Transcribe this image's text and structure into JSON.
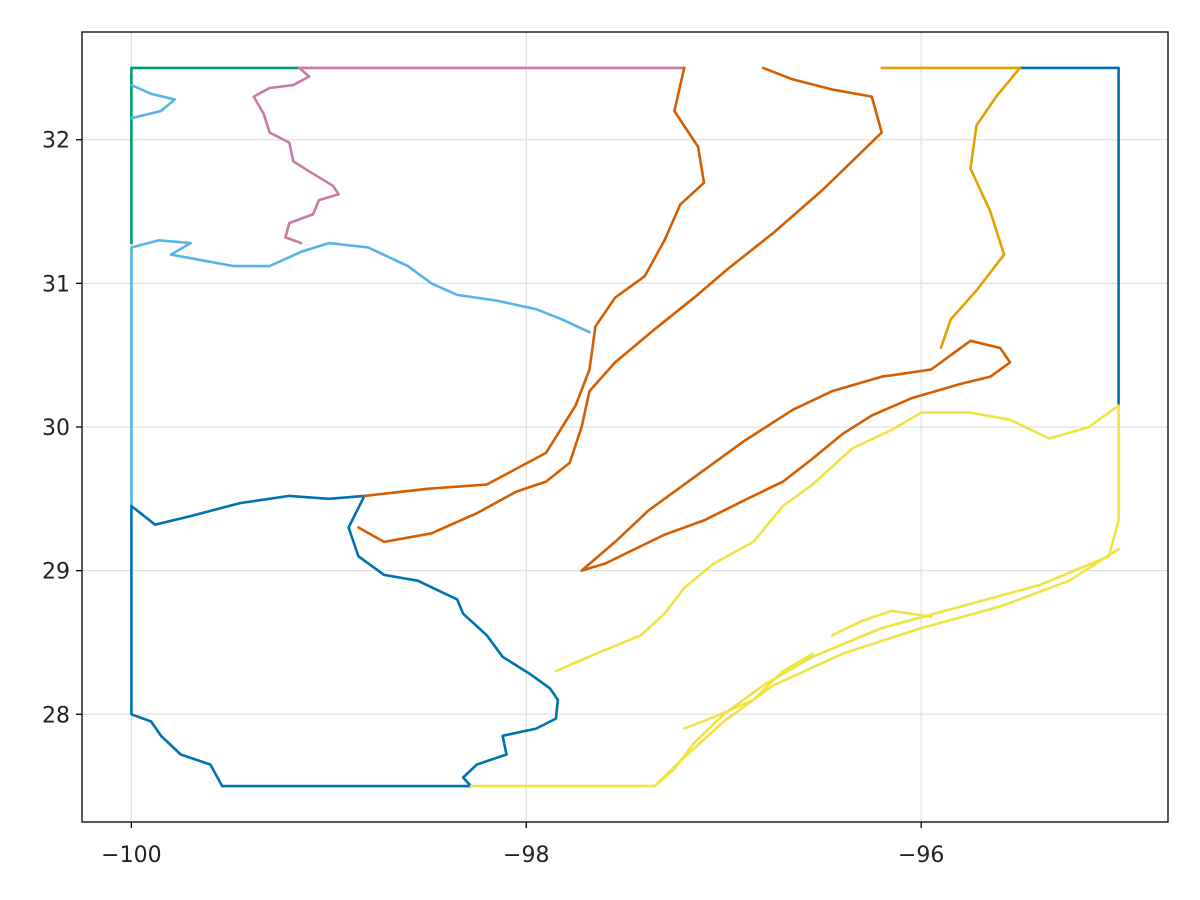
{
  "chart_data": {
    "type": "map",
    "xlim": [
      -100.25,
      -94.75
    ],
    "ylim": [
      27.25,
      32.75
    ],
    "grid": true,
    "x_ticks": [
      {
        "value": -100,
        "label": "−100"
      },
      {
        "value": -98,
        "label": "−98"
      },
      {
        "value": -96,
        "label": "−96"
      }
    ],
    "y_ticks": [
      {
        "value": 28,
        "label": "28"
      },
      {
        "value": 29,
        "label": "29"
      },
      {
        "value": 30,
        "label": "30"
      },
      {
        "value": 31,
        "label": "31"
      },
      {
        "value": 32,
        "label": "32"
      }
    ],
    "regions": [
      {
        "color": "#009e73",
        "paths": [
          [
            [
              -100.0,
              31.28
            ],
            [
              -100.0,
              32.5
            ],
            [
              -99.15,
              32.5
            ]
          ]
        ]
      },
      {
        "color": "#cc79a7",
        "paths": [
          [
            [
              -99.15,
              32.5
            ],
            [
              -98.8,
              32.5
            ],
            [
              -97.2,
              32.5
            ]
          ],
          [
            [
              -99.15,
              32.5
            ],
            [
              -99.1,
              32.44
            ],
            [
              -99.18,
              32.38
            ],
            [
              -99.3,
              32.36
            ],
            [
              -99.38,
              32.3
            ],
            [
              -99.33,
              32.18
            ],
            [
              -99.3,
              32.05
            ],
            [
              -99.2,
              31.98
            ],
            [
              -99.18,
              31.85
            ],
            [
              -99.1,
              31.78
            ],
            [
              -98.98,
              31.68
            ],
            [
              -98.95,
              31.62
            ],
            [
              -99.05,
              31.58
            ],
            [
              -99.08,
              31.48
            ],
            [
              -99.2,
              31.42
            ],
            [
              -99.22,
              31.32
            ],
            [
              -99.14,
              31.28
            ]
          ]
        ]
      },
      {
        "color": "#56b4e9",
        "paths": [
          [
            [
              -100.0,
              32.38
            ],
            [
              -99.9,
              32.32
            ],
            [
              -99.78,
              32.28
            ],
            [
              -99.85,
              32.2
            ],
            [
              -100.0,
              32.15
            ]
          ],
          [
            [
              -100.0,
              29.45
            ],
            [
              -100.0,
              31.25
            ],
            [
              -99.86,
              31.3
            ],
            [
              -99.7,
              31.28
            ],
            [
              -99.8,
              31.2
            ],
            [
              -99.6,
              31.15
            ],
            [
              -99.48,
              31.12
            ],
            [
              -99.3,
              31.12
            ],
            [
              -99.14,
              31.22
            ],
            [
              -99.0,
              31.28
            ],
            [
              -98.8,
              31.25
            ],
            [
              -98.6,
              31.12
            ],
            [
              -98.48,
              31.0
            ],
            [
              -98.35,
              30.92
            ],
            [
              -98.15,
              30.88
            ],
            [
              -97.95,
              30.82
            ],
            [
              -97.82,
              30.75
            ],
            [
              -97.68,
              30.66
            ]
          ]
        ]
      },
      {
        "color": "#0072b2",
        "paths": [
          [
            [
              -95.5,
              32.5
            ],
            [
              -95.0,
              32.5
            ],
            [
              -95.0,
              30.15
            ]
          ],
          [
            [
              -98.82,
              29.52
            ],
            [
              -99.0,
              29.5
            ],
            [
              -99.2,
              29.52
            ],
            [
              -99.45,
              29.47
            ],
            [
              -99.7,
              29.38
            ],
            [
              -99.88,
              29.32
            ],
            [
              -100.0,
              29.45
            ],
            [
              -100.0,
              28.0
            ],
            [
              -99.9,
              27.95
            ],
            [
              -99.85,
              27.85
            ],
            [
              -99.75,
              27.72
            ],
            [
              -99.6,
              27.65
            ],
            [
              -99.54,
              27.5
            ],
            [
              -99.0,
              27.5
            ],
            [
              -98.28,
              27.5
            ],
            [
              -98.32,
              27.56
            ],
            [
              -98.25,
              27.65
            ],
            [
              -98.1,
              27.72
            ],
            [
              -98.12,
              27.85
            ],
            [
              -97.95,
              27.9
            ],
            [
              -97.85,
              27.97
            ],
            [
              -97.84,
              28.1
            ],
            [
              -97.88,
              28.18
            ],
            [
              -97.98,
              28.28
            ],
            [
              -98.12,
              28.4
            ],
            [
              -98.2,
              28.55
            ],
            [
              -98.32,
              28.7
            ],
            [
              -98.35,
              28.8
            ],
            [
              -98.55,
              28.93
            ],
            [
              -98.72,
              28.97
            ],
            [
              -98.85,
              29.1
            ],
            [
              -98.9,
              29.3
            ],
            [
              -98.82,
              29.52
            ]
          ]
        ]
      },
      {
        "color": "#d55e00",
        "paths": [
          [
            [
              -98.82,
              29.52
            ],
            [
              -98.5,
              29.57
            ],
            [
              -98.2,
              29.6
            ],
            [
              -97.9,
              29.82
            ],
            [
              -97.75,
              30.15
            ],
            [
              -97.68,
              30.4
            ],
            [
              -97.65,
              30.7
            ],
            [
              -97.55,
              30.9
            ],
            [
              -97.4,
              31.05
            ],
            [
              -97.3,
              31.3
            ],
            [
              -97.22,
              31.55
            ],
            [
              -97.1,
              31.7
            ],
            [
              -97.13,
              31.95
            ],
            [
              -97.25,
              32.2
            ],
            [
              -97.2,
              32.5
            ]
          ],
          [
            [
              -96.8,
              32.5
            ],
            [
              -96.65,
              32.42
            ],
            [
              -96.45,
              32.35
            ],
            [
              -96.25,
              32.3
            ],
            [
              -96.2,
              32.05
            ],
            [
              -96.35,
              31.85
            ],
            [
              -96.5,
              31.65
            ],
            [
              -96.75,
              31.35
            ],
            [
              -96.98,
              31.1
            ],
            [
              -97.15,
              30.9
            ],
            [
              -97.35,
              30.68
            ],
            [
              -97.55,
              30.45
            ],
            [
              -97.68,
              30.25
            ],
            [
              -97.72,
              30.0
            ],
            [
              -97.78,
              29.75
            ],
            [
              -97.9,
              29.62
            ],
            [
              -98.05,
              29.55
            ],
            [
              -98.25,
              29.4
            ],
            [
              -98.48,
              29.26
            ],
            [
              -98.72,
              29.2
            ],
            [
              -98.85,
              29.3
            ]
          ],
          [
            [
              -97.72,
              29.0
            ],
            [
              -97.6,
              29.05
            ],
            [
              -97.45,
              29.15
            ],
            [
              -97.3,
              29.25
            ],
            [
              -97.1,
              29.35
            ],
            [
              -96.88,
              29.5
            ],
            [
              -96.7,
              29.62
            ],
            [
              -96.55,
              29.78
            ],
            [
              -96.4,
              29.95
            ],
            [
              -96.25,
              30.08
            ],
            [
              -96.05,
              30.2
            ],
            [
              -95.8,
              30.3
            ],
            [
              -95.65,
              30.35
            ],
            [
              -95.55,
              30.45
            ],
            [
              -95.6,
              30.55
            ],
            [
              -95.75,
              30.6
            ],
            [
              -95.85,
              30.5
            ],
            [
              -95.95,
              30.4
            ],
            [
              -96.2,
              30.35
            ],
            [
              -96.45,
              30.25
            ],
            [
              -96.65,
              30.12
            ],
            [
              -96.9,
              29.9
            ],
            [
              -97.15,
              29.65
            ],
            [
              -97.38,
              29.42
            ],
            [
              -97.55,
              29.2
            ],
            [
              -97.72,
              29.0
            ]
          ]
        ]
      },
      {
        "color": "#e69f00",
        "paths": [
          [
            [
              -96.2,
              32.5
            ],
            [
              -95.5,
              32.5
            ],
            [
              -95.62,
              32.3
            ],
            [
              -95.72,
              32.1
            ],
            [
              -95.75,
              31.8
            ],
            [
              -95.65,
              31.5
            ],
            [
              -95.58,
              31.2
            ],
            [
              -95.72,
              30.95
            ],
            [
              -95.85,
              30.75
            ],
            [
              -95.9,
              30.55
            ]
          ]
        ]
      },
      {
        "color": "#f0e442",
        "paths": [
          [
            [
              -98.28,
              27.5
            ],
            [
              -97.35,
              27.5
            ],
            [
              -97.25,
              27.62
            ],
            [
              -97.15,
              27.8
            ],
            [
              -97.0,
              28.0
            ],
            [
              -96.8,
              28.2
            ],
            [
              -96.55,
              28.4
            ],
            [
              -96.2,
              28.6
            ],
            [
              -95.8,
              28.75
            ],
            [
              -95.4,
              28.9
            ],
            [
              -95.05,
              29.1
            ],
            [
              -95.0,
              29.35
            ],
            [
              -95.0,
              30.15
            ],
            [
              -95.15,
              30.0
            ],
            [
              -95.35,
              29.92
            ],
            [
              -95.55,
              30.05
            ],
            [
              -95.75,
              30.1
            ],
            [
              -96.0,
              30.1
            ],
            [
              -96.15,
              29.98
            ],
            [
              -96.35,
              29.85
            ],
            [
              -96.55,
              29.6
            ],
            [
              -96.7,
              29.45
            ],
            [
              -96.85,
              29.2
            ],
            [
              -97.05,
              29.05
            ],
            [
              -97.2,
              28.88
            ],
            [
              -97.3,
              28.7
            ],
            [
              -97.42,
              28.55
            ],
            [
              -97.65,
              28.42
            ],
            [
              -97.85,
              28.3
            ]
          ],
          [
            [
              -97.35,
              27.5
            ],
            [
              -97.2,
              27.7
            ],
            [
              -97.0,
              27.95
            ],
            [
              -96.75,
              28.2
            ],
            [
              -96.4,
              28.42
            ],
            [
              -96.0,
              28.6
            ],
            [
              -95.6,
              28.75
            ],
            [
              -95.25,
              28.93
            ],
            [
              -95.0,
              29.15
            ]
          ],
          [
            [
              -97.2,
              27.9
            ],
            [
              -97.05,
              27.98
            ],
            [
              -96.85,
              28.1
            ],
            [
              -96.7,
              28.3
            ],
            [
              -96.55,
              28.42
            ]
          ],
          [
            [
              -96.45,
              28.55
            ],
            [
              -96.3,
              28.65
            ],
            [
              -96.15,
              28.72
            ],
            [
              -95.95,
              28.68
            ]
          ]
        ]
      }
    ]
  }
}
